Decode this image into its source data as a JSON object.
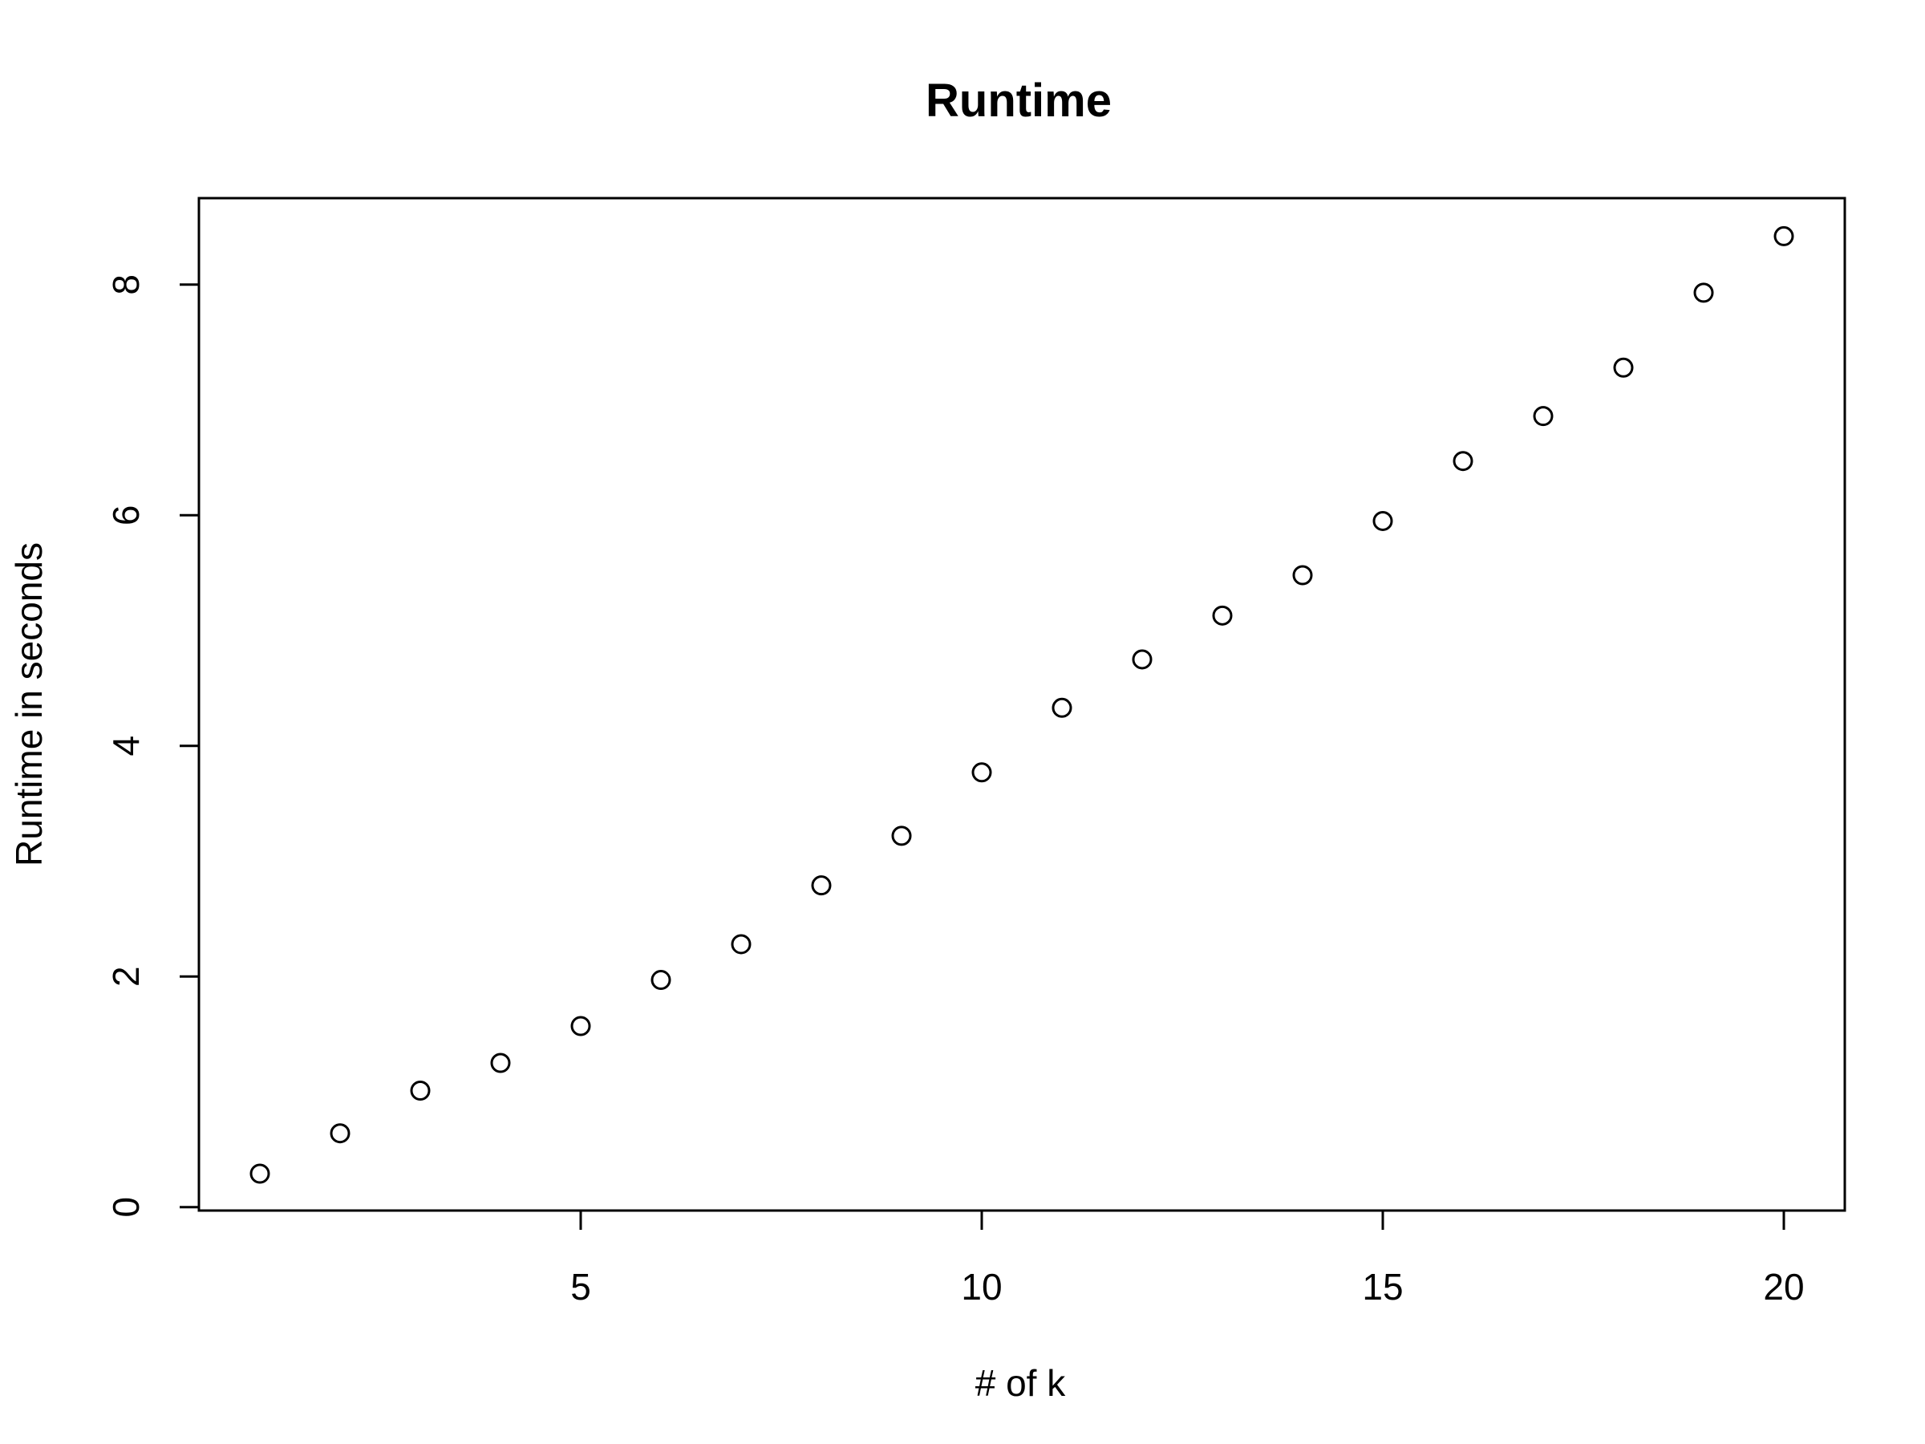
{
  "chart_data": {
    "type": "scatter",
    "title": "Runtime",
    "xlabel": "# of k",
    "ylabel": "Runtime in seconds",
    "x": [
      1,
      2,
      3,
      4,
      5,
      6,
      7,
      8,
      9,
      10,
      11,
      12,
      13,
      14,
      15,
      16,
      17,
      18,
      19,
      20
    ],
    "y": [
      0.29,
      0.64,
      1.01,
      1.25,
      1.57,
      1.97,
      2.28,
      2.79,
      3.22,
      3.77,
      4.33,
      4.75,
      5.13,
      5.48,
      5.95,
      6.47,
      6.86,
      7.28,
      7.93,
      8.42
    ],
    "xlim": [
      0.24,
      20.76
    ],
    "ylim": [
      -0.03,
      8.75
    ],
    "xticks": [
      5,
      10,
      15,
      20
    ],
    "yticks": [
      0,
      2,
      4,
      6,
      8
    ],
    "marker": "open-circle",
    "grid": false,
    "legend": "none"
  }
}
